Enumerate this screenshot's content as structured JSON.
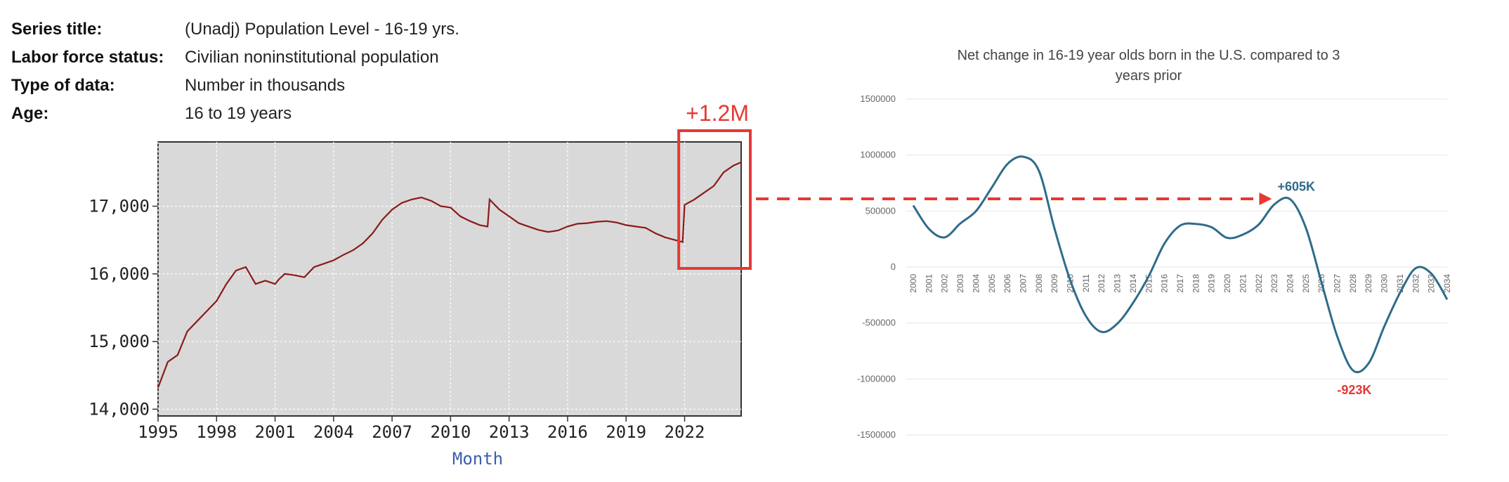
{
  "metadata": [
    {
      "label": "Series title:",
      "value": "(Unadj) Population Level - 16-19 yrs."
    },
    {
      "label": "Labor force status:",
      "value": "Civilian noninstitutional population"
    },
    {
      "label": "Type of data:",
      "value": "Number in thousands"
    },
    {
      "label": "Age:",
      "value": "16 to 19 years"
    }
  ],
  "colors": {
    "left_line": "#8b1a1a",
    "left_plot_bg": "#d9d9d9",
    "highlight": "#e53935",
    "right_line": "#2f6b8a",
    "annotation_blue": "#2f6b8a",
    "annotation_red": "#e53935"
  },
  "annotations": {
    "highlight_label": "+1.2M",
    "peak_label": "+605K",
    "trough_label": "-923K"
  },
  "chart_data": [
    {
      "type": "line",
      "title": "",
      "xlabel": "Month",
      "ylabel": "",
      "xlim": [
        1995,
        2024.9
      ],
      "ylim": [
        13900,
        17950
      ],
      "x_ticks": [
        "1995",
        "1998",
        "2001",
        "2004",
        "2007",
        "2010",
        "2013",
        "2016",
        "2019",
        "2022"
      ],
      "y_ticks": [
        "14,000",
        "15,000",
        "16,000",
        "17,000"
      ],
      "grid": true,
      "series": [
        {
          "x": [
            1995.0,
            1995.5,
            1996.0,
            1996.5,
            1997.0,
            1997.5,
            1998.0,
            1998.5,
            1999.0,
            1999.5,
            2000.0,
            2000.5,
            2001.0,
            2001.2,
            2001.5,
            2002.0,
            2002.5,
            2003.0,
            2003.5,
            2004.0,
            2004.5,
            2005.0,
            2005.5,
            2006.0,
            2006.5,
            2007.0,
            2007.5,
            2008.0,
            2008.5,
            2009.0,
            2009.5,
            2010.0,
            2010.5,
            2011.0,
            2011.5,
            2011.9,
            2012.0,
            2012.5,
            2013.0,
            2013.5,
            2014.0,
            2014.5,
            2015.0,
            2015.5,
            2016.0,
            2016.5,
            2017.0,
            2017.5,
            2018.0,
            2018.5,
            2019.0,
            2019.5,
            2020.0,
            2020.5,
            2021.0,
            2021.5,
            2021.9,
            2022.0,
            2022.5,
            2023.0,
            2023.5,
            2024.0,
            2024.5,
            2024.9
          ],
          "y": [
            14320,
            14700,
            14800,
            15150,
            15300,
            15450,
            15600,
            15850,
            16050,
            16100,
            15850,
            15900,
            15850,
            15920,
            16000,
            15980,
            15950,
            16100,
            16150,
            16200,
            16280,
            16350,
            16450,
            16600,
            16800,
            16950,
            17050,
            17100,
            17130,
            17080,
            17000,
            16980,
            16850,
            16780,
            16720,
            16700,
            17100,
            16950,
            16850,
            16750,
            16700,
            16650,
            16620,
            16640,
            16700,
            16740,
            16750,
            16770,
            16780,
            16760,
            16720,
            16700,
            16680,
            16600,
            16540,
            16500,
            16470,
            17020,
            17100,
            17200,
            17300,
            17500,
            17600,
            17650
          ]
        }
      ]
    },
    {
      "type": "line",
      "title": "Net change in 16-19 year olds born in the U.S. compared to 3 years prior",
      "xlabel": "",
      "ylabel": "",
      "ylim": [
        -1500000,
        1500000
      ],
      "y_ticks": [
        "1500000",
        "1000000",
        "500000",
        "0",
        "-500000",
        "-1000000",
        "-1500000"
      ],
      "grid": true,
      "categories": [
        "2000",
        "2001",
        "2002",
        "2003",
        "2004",
        "2005",
        "2006",
        "2007",
        "2008",
        "2009",
        "2010",
        "2011",
        "2012",
        "2013",
        "2014",
        "2015",
        "2016",
        "2017",
        "2018",
        "2019",
        "2020",
        "2021",
        "2022",
        "2023",
        "2024",
        "2025",
        "2026",
        "2027",
        "2028",
        "2029",
        "2030",
        "2031",
        "2032",
        "2033",
        "2034"
      ],
      "series": [
        {
          "values": [
            550000,
            340000,
            265000,
            390000,
            500000,
            710000,
            920000,
            985000,
            860000,
            340000,
            -120000,
            -440000,
            -580000,
            -505000,
            -320000,
            -80000,
            210000,
            370000,
            385000,
            355000,
            260000,
            290000,
            380000,
            560000,
            605000,
            350000,
            -140000,
            -620000,
            -923000,
            -860000,
            -530000,
            -230000,
            -10000,
            -60000,
            -290000
          ]
        }
      ]
    }
  ]
}
